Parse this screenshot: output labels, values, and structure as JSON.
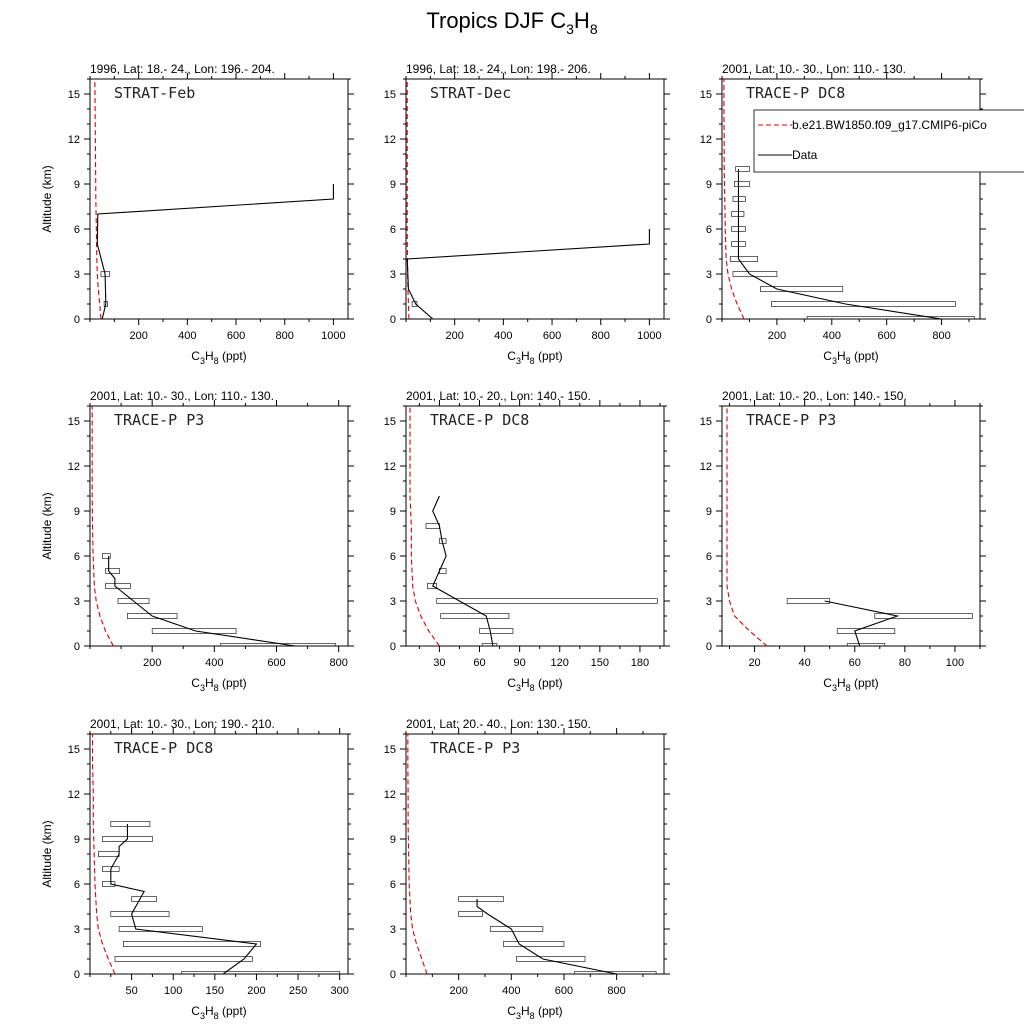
{
  "title": {
    "main": "Tropics DJF C",
    "sub3": "3",
    "H": "H",
    "sub8": "8"
  },
  "xlabel": {
    "a": "C",
    "b": "3",
    "c": "H",
    "d": "8",
    "e": " (ppt)"
  },
  "ylabel": "Altitude (km)",
  "legend": {
    "model": "b.e21.BW1850.f09_g17.CMIP6-piCo",
    "data": "Data"
  },
  "chart_data": [
    {
      "type": "line",
      "title": "1996, Lat: 18.- 24., Lon: 196.- 204.",
      "label": "STRAT-Feb",
      "xlim": [
        0,
        1060
      ],
      "xticks": [
        200,
        400,
        600,
        800,
        1000
      ],
      "xminor": 100,
      "ylim": [
        0,
        16
      ],
      "yticks": [
        0,
        3,
        6,
        9,
        12,
        15
      ],
      "model": {
        "x": [
          45,
          40,
          34,
          30,
          28,
          26,
          24,
          23,
          22,
          21,
          20
        ],
        "y": [
          0,
          1,
          2,
          3,
          4,
          6,
          8,
          10,
          12,
          14,
          16
        ]
      },
      "data": {
        "x": [
          50,
          65,
          62,
          30,
          32,
          1000,
          1000
        ],
        "y": [
          0,
          1,
          3,
          5,
          7,
          8,
          9
        ]
      },
      "bars": [
        {
          "y": 1,
          "lo": 58,
          "hi": 72
        },
        {
          "y": 3,
          "lo": 45,
          "hi": 80
        }
      ]
    },
    {
      "type": "line",
      "title": "1996, Lat: 18.- 24., Lon: 198.- 206.",
      "label": "STRAT-Dec",
      "xlim": [
        0,
        1060
      ],
      "xticks": [
        200,
        400,
        600,
        800,
        1000
      ],
      "xminor": 100,
      "ylim": [
        0,
        16
      ],
      "yticks": [
        0,
        3,
        6,
        9,
        12,
        15
      ],
      "model": {
        "x": [
          12,
          10,
          8,
          7,
          6,
          5,
          5,
          5,
          5,
          5,
          5
        ],
        "y": [
          0,
          1,
          2,
          3,
          4,
          6,
          8,
          10,
          12,
          14,
          16
        ]
      },
      "data": {
        "x": [
          110,
          40,
          10,
          5,
          1000,
          1000
        ],
        "y": [
          0,
          1,
          2,
          4,
          5,
          6
        ]
      },
      "bars": [
        {
          "y": 1,
          "lo": 25,
          "hi": 45
        }
      ]
    },
    {
      "type": "line",
      "title": "2001, Lat: 10.- 30., Lon: 110.- 130.",
      "label": "TRACE-P DC8",
      "xlim": [
        0,
        940
      ],
      "xticks": [
        200,
        400,
        600,
        800
      ],
      "xminor": 100,
      "ylim": [
        0,
        16
      ],
      "yticks": [
        0,
        3,
        6,
        9,
        12,
        15
      ],
      "model": {
        "x": [
          80,
          55,
          35,
          22,
          15,
          12,
          10,
          8,
          8,
          7,
          7
        ],
        "y": [
          0,
          1,
          2,
          3,
          4,
          6,
          8,
          10,
          12,
          14,
          16
        ]
      },
      "data": {
        "x": [
          800,
          450,
          200,
          100,
          60,
          60,
          60,
          60,
          60,
          60,
          60
        ],
        "y": [
          0,
          1,
          2,
          3,
          4,
          5,
          6,
          7,
          8,
          9,
          10
        ]
      },
      "bars": [
        {
          "y": 0,
          "lo": 310,
          "hi": 920
        },
        {
          "y": 1,
          "lo": 180,
          "hi": 850
        },
        {
          "y": 2,
          "lo": 140,
          "hi": 440
        },
        {
          "y": 3,
          "lo": 40,
          "hi": 200
        },
        {
          "y": 4,
          "lo": 30,
          "hi": 130
        },
        {
          "y": 5,
          "lo": 35,
          "hi": 85
        },
        {
          "y": 6,
          "lo": 35,
          "hi": 85
        },
        {
          "y": 7,
          "lo": 35,
          "hi": 80
        },
        {
          "y": 8,
          "lo": 40,
          "hi": 85
        },
        {
          "y": 9,
          "lo": 45,
          "hi": 100
        },
        {
          "y": 10,
          "lo": 50,
          "hi": 100
        }
      ]
    },
    {
      "type": "line",
      "title": "2001, Lat: 10.- 30., Lon: 110.- 130.",
      "label": "TRACE-P P3",
      "xlim": [
        0,
        830
      ],
      "xticks": [
        200,
        400,
        600,
        800
      ],
      "xminor": 100,
      "ylim": [
        0,
        16
      ],
      "yticks": [
        0,
        3,
        6,
        9,
        12,
        15
      ],
      "model": {
        "x": [
          75,
          50,
          32,
          20,
          14,
          10,
          8,
          7,
          7,
          7,
          7
        ],
        "y": [
          0,
          1,
          2,
          3,
          4,
          6,
          8,
          10,
          12,
          14,
          16
        ]
      },
      "data": {
        "x": [
          660,
          340,
          200,
          140,
          80,
          80,
          60,
          60
        ],
        "y": [
          0,
          1,
          2,
          3,
          4,
          4.5,
          5,
          6
        ]
      },
      "bars": [
        {
          "y": 0,
          "lo": 420,
          "hi": 790
        },
        {
          "y": 1,
          "lo": 200,
          "hi": 470
        },
        {
          "y": 2,
          "lo": 120,
          "hi": 280
        },
        {
          "y": 3,
          "lo": 90,
          "hi": 190
        },
        {
          "y": 4,
          "lo": 50,
          "hi": 130
        },
        {
          "y": 5,
          "lo": 50,
          "hi": 95
        },
        {
          "y": 6,
          "lo": 40,
          "hi": 65
        }
      ]
    },
    {
      "type": "line",
      "title": "2001, Lat: 10.- 20., Lon: 140.- 150.",
      "label": "TRACE-P DC8",
      "xlim": [
        5,
        198
      ],
      "xticks": [
        30,
        60,
        90,
        120,
        150,
        180
      ],
      "xminor": 15,
      "ylim": [
        0,
        16
      ],
      "yticks": [
        0,
        3,
        6,
        9,
        12,
        15
      ],
      "model": {
        "x": [
          30,
          22,
          16,
          12,
          10,
          9,
          9,
          8,
          8,
          8,
          8
        ],
        "y": [
          0,
          1,
          2,
          3,
          4,
          6,
          8,
          10,
          12,
          14,
          16
        ]
      },
      "data": {
        "x": [
          70,
          68,
          65,
          45,
          25,
          30,
          35,
          32,
          30,
          25,
          30
        ],
        "y": [
          0,
          1,
          2,
          3,
          4,
          5,
          6,
          7,
          8,
          9,
          10
        ]
      },
      "bars": [
        {
          "y": 0,
          "lo": 62,
          "hi": 73
        },
        {
          "y": 1,
          "lo": 60,
          "hi": 85
        },
        {
          "y": 2,
          "lo": 31,
          "hi": 82
        },
        {
          "y": 3,
          "lo": 28,
          "hi": 193
        },
        {
          "y": 4,
          "lo": 21,
          "hi": 28
        },
        {
          "y": 5,
          "lo": 30,
          "hi": 35
        },
        {
          "y": 7,
          "lo": 30,
          "hi": 35
        },
        {
          "y": 8,
          "lo": 20,
          "hi": 30
        }
      ]
    },
    {
      "type": "line",
      "title": "2001, Lat: 10.- 20., Lon: 140.- 150.",
      "label": "TRACE-P P3",
      "xlim": [
        7,
        110
      ],
      "xticks": [
        20,
        40,
        60,
        80,
        100
      ],
      "xminor": 10,
      "ylim": [
        0,
        16
      ],
      "yticks": [
        0,
        3,
        6,
        9,
        12,
        15
      ],
      "model": {
        "x": [
          25,
          18,
          12,
          10,
          9,
          9,
          9,
          9,
          9,
          9,
          9
        ],
        "y": [
          0,
          1,
          2,
          3,
          4,
          6,
          8,
          10,
          12,
          14,
          16
        ]
      },
      "data": {
        "x": [
          62,
          60,
          77,
          48
        ],
        "y": [
          0,
          1,
          2,
          3
        ]
      },
      "bars": [
        {
          "y": 0,
          "lo": 57,
          "hi": 72
        },
        {
          "y": 1,
          "lo": 53,
          "hi": 76
        },
        {
          "y": 2,
          "lo": 68,
          "hi": 107
        },
        {
          "y": 3,
          "lo": 33,
          "hi": 50
        }
      ]
    },
    {
      "type": "line",
      "title": "2001, Lat: 10.- 30., Lon: 190.- 210.",
      "label": "TRACE-P DC8",
      "xlim": [
        0,
        310
      ],
      "xticks": [
        50,
        100,
        150,
        200,
        250,
        300
      ],
      "xminor": 25,
      "ylim": [
        0,
        16
      ],
      "yticks": [
        0,
        3,
        6,
        9,
        12,
        15
      ],
      "model": {
        "x": [
          30,
          22,
          15,
          10,
          8,
          6,
          5,
          4,
          4,
          3,
          3
        ],
        "y": [
          0,
          1,
          2,
          3,
          4,
          6,
          8,
          10,
          12,
          14,
          16
        ]
      },
      "data": {
        "x": [
          160,
          185,
          200,
          55,
          50,
          60,
          65,
          25,
          25,
          35,
          35,
          45,
          45
        ],
        "y": [
          0,
          1,
          2,
          3,
          4,
          5,
          5.5,
          6,
          7,
          8,
          8.5,
          9,
          10
        ]
      },
      "bars": [
        {
          "y": 0,
          "lo": 110,
          "hi": 300
        },
        {
          "y": 1,
          "lo": 30,
          "hi": 195
        },
        {
          "y": 2,
          "lo": 40,
          "hi": 205
        },
        {
          "y": 3,
          "lo": 35,
          "hi": 135
        },
        {
          "y": 4,
          "lo": 25,
          "hi": 95
        },
        {
          "y": 5,
          "lo": 50,
          "hi": 80
        },
        {
          "y": 6,
          "lo": 15,
          "hi": 30
        },
        {
          "y": 7,
          "lo": 15,
          "hi": 35
        },
        {
          "y": 8,
          "lo": 10,
          "hi": 35
        },
        {
          "y": 9,
          "lo": 15,
          "hi": 75
        },
        {
          "y": 10,
          "lo": 25,
          "hi": 72
        }
      ]
    },
    {
      "type": "line",
      "title": "2001, Lat: 20.- 40., Lon: 130.- 150.",
      "label": "TRACE-P P3",
      "xlim": [
        0,
        980
      ],
      "xticks": [
        200,
        400,
        600,
        800
      ],
      "xminor": 100,
      "ylim": [
        0,
        16
      ],
      "yticks": [
        0,
        3,
        6,
        9,
        12,
        15
      ],
      "model": {
        "x": [
          80,
          60,
          40,
          25,
          18,
          12,
          10,
          8,
          8,
          7,
          7
        ],
        "y": [
          0,
          1,
          2,
          3,
          4,
          6,
          8,
          10,
          12,
          14,
          16
        ]
      },
      "data": {
        "x": [
          800,
          520,
          430,
          400,
          310,
          270,
          270
        ],
        "y": [
          0,
          1,
          2,
          3,
          4,
          4.5,
          5
        ]
      },
      "bars": [
        {
          "y": 0,
          "lo": 640,
          "hi": 950
        },
        {
          "y": 1,
          "lo": 420,
          "hi": 680
        },
        {
          "y": 2,
          "lo": 370,
          "hi": 600
        },
        {
          "y": 3,
          "lo": 320,
          "hi": 520
        },
        {
          "y": 4,
          "lo": 200,
          "hi": 290
        },
        {
          "y": 5,
          "lo": 200,
          "hi": 370
        }
      ]
    }
  ]
}
